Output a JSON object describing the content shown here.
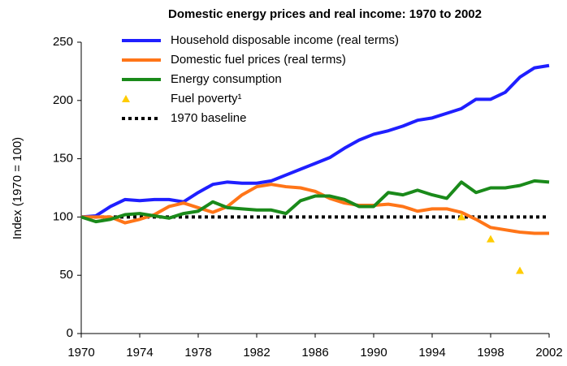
{
  "chart_data": {
    "type": "line",
    "title": "Domestic energy prices and real income: 1970 to 2002",
    "y_label": "Index (1970 = 100)",
    "x": [
      1970,
      1971,
      1972,
      1973,
      1974,
      1975,
      1976,
      1977,
      1978,
      1979,
      1980,
      1981,
      1982,
      1983,
      1984,
      1985,
      1986,
      1987,
      1988,
      1989,
      1990,
      1991,
      1992,
      1993,
      1994,
      1995,
      1996,
      1997,
      1998,
      1999,
      2000,
      2001,
      2002
    ],
    "series": [
      {
        "name": "Household disposable income (real terms)",
        "color": "#1f1fff",
        "style": "line",
        "values": [
          100,
          101,
          109,
          115,
          114,
          115,
          115,
          113,
          121,
          128,
          130,
          129,
          129,
          131,
          136,
          141,
          146,
          151,
          159,
          166,
          171,
          174,
          178,
          183,
          185,
          189,
          193,
          201,
          201,
          207,
          220,
          228,
          230
        ]
      },
      {
        "name": "Domestic fuel prices (real terms)",
        "color": "#ff7518",
        "style": "line",
        "values": [
          100,
          100,
          100,
          95,
          98,
          102,
          109,
          112,
          108,
          104,
          109,
          119,
          126,
          128,
          126,
          125,
          122,
          116,
          112,
          110,
          110,
          111,
          109,
          105,
          107,
          107,
          104,
          98,
          91,
          89,
          87,
          86,
          86
        ]
      },
      {
        "name": "Energy consumption",
        "color": "#1a8a1a",
        "style": "line",
        "values": [
          100,
          96,
          98,
          102,
          103,
          101,
          99,
          103,
          105,
          113,
          108,
          107,
          106,
          106,
          103,
          114,
          118,
          118,
          115,
          109,
          109,
          121,
          119,
          123,
          119,
          116,
          130,
          121,
          125,
          125,
          127,
          131,
          130
        ]
      },
      {
        "name": "Fuel poverty¹",
        "color": "#ffcc00",
        "style": "triangle",
        "values": [
          null,
          null,
          null,
          null,
          null,
          null,
          null,
          null,
          null,
          null,
          null,
          null,
          null,
          null,
          null,
          null,
          null,
          null,
          null,
          null,
          null,
          null,
          null,
          null,
          null,
          null,
          100,
          null,
          81,
          null,
          54,
          null,
          null
        ]
      }
    ],
    "baseline": {
      "name": "1970 baseline",
      "value": 100,
      "color": "#000000"
    },
    "xlim": [
      1970,
      2002
    ],
    "xticks": [
      1970,
      1974,
      1978,
      1982,
      1986,
      1990,
      1994,
      1998,
      2002
    ],
    "ylim": [
      0,
      250
    ],
    "yticks": [
      0,
      50,
      100,
      150,
      200,
      250
    ]
  }
}
